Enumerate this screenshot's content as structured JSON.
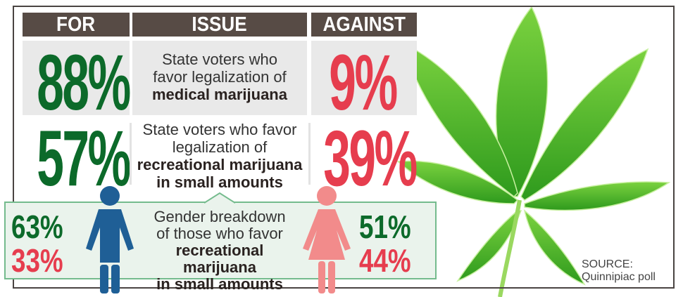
{
  "headers": {
    "for": "FOR",
    "issue": "ISSUE",
    "against": "AGAINST"
  },
  "rows": [
    {
      "for": "88%",
      "issue_line1": "State voters who",
      "issue_line2": "favor legalization of",
      "issue_bold": "medical marijuana",
      "against": "9%"
    },
    {
      "for": "57%",
      "issue_line1": "State voters who favor",
      "issue_line2": "legalization of",
      "issue_bold": "recreational marijuana",
      "issue_bold2": "in small amounts",
      "against": "39%"
    }
  ],
  "gender": {
    "line1": "Gender breakdown",
    "line2": "of those who favor",
    "bold1": "recreational marijuana",
    "bold2": "in small amounts",
    "men": {
      "for": "63%",
      "against": "33%",
      "icon": "man-icon",
      "color": "#1f5f96"
    },
    "women": {
      "for": "51%",
      "against": "44%",
      "icon": "woman-icon",
      "color": "#f28b8b"
    }
  },
  "colors": {
    "for": "#0c6a2a",
    "against": "#e63d4e",
    "header": "#574b45"
  },
  "source": {
    "label": "SOURCE:",
    "name": "Quinnipiac poll"
  }
}
